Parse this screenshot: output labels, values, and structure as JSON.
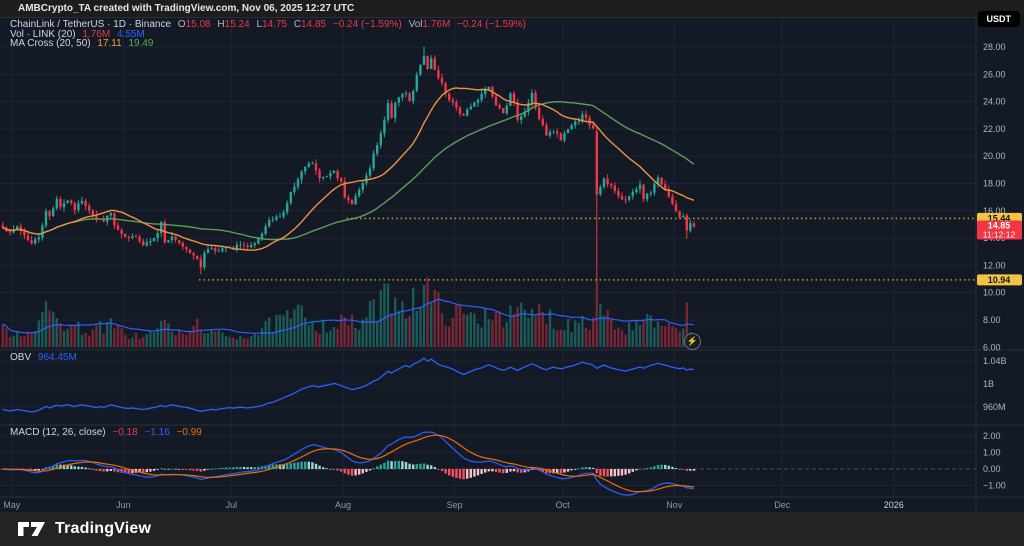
{
  "titlebar": {
    "text": "AMBCrypto_TA created with TradingView.com, Nov 06, 2025 12:27 UTC"
  },
  "legend": {
    "symbol": "ChainLink / TetherUS · 1D · Binance",
    "o_label": "O",
    "o_value": "15.08",
    "h_label": "H",
    "h_value": "15.24",
    "l_label": "L",
    "l_value": "14.75",
    "c_label": "C",
    "c_value": "14.85",
    "change": "−0.24 (−1.59%)",
    "vol_label": "Vol",
    "vol_value": "1.76M",
    "vol_change": "−0.24 (−1.59%)",
    "vol_row_label": "Vol · LINK (20)",
    "vol_row_v1": "1.76M",
    "vol_row_v2": "4.55M",
    "ma_row_label": "MA Cross (20, 50)",
    "ma_row_v1": "17.11",
    "ma_row_v2": "19.49",
    "obv_label": "OBV",
    "obv_value": "964.45M",
    "macd_label": "MACD (12, 26, close)",
    "macd_v1": "−0.18",
    "macd_v2": "−1.16",
    "macd_v3": "−0.99"
  },
  "price_axis": {
    "currency": "USDT",
    "ticks": [
      "28.00",
      "26.00",
      "24.00",
      "22.00",
      "20.00",
      "18.00",
      "16.00",
      "14.00",
      "12.00",
      "10.00",
      "8.00",
      "6.00"
    ],
    "resistance_badge": "15.44",
    "last_price_badge": "14.85",
    "countdown_badge": "11:12:12",
    "support_badge": "10.94"
  },
  "obv_axis": {
    "ticks": [
      "1.04B",
      "1B",
      "960M"
    ]
  },
  "macd_axis": {
    "ticks": [
      "2.00",
      "1.00",
      "0.00",
      "−1.00"
    ]
  },
  "time_axis": {
    "labels": [
      {
        "label": "May",
        "index": 3
      },
      {
        "label": "Jun",
        "index": 34
      },
      {
        "label": "Jul",
        "index": 64
      },
      {
        "label": "Aug",
        "index": 95
      },
      {
        "label": "Sep",
        "index": 126
      },
      {
        "label": "Oct",
        "index": 156
      },
      {
        "label": "Nov",
        "index": 187
      },
      {
        "label": "Dec",
        "index": 217
      },
      {
        "label": "2026",
        "index": 248,
        "bright": true
      }
    ]
  },
  "footer": {
    "brand": "TradingView"
  },
  "colors": {
    "bg": "#141a25",
    "grid": "#1d2433",
    "separator": "#2a2e39",
    "axis_text": "#b2b5be",
    "time_text": "#9598a1",
    "bright_text": "#d1d4dc",
    "up": "#26a69a",
    "down": "#f23645",
    "ma_fast": "#f0933e",
    "ma_slow": "#5b9f58",
    "blue": "#2962ff",
    "signal": "#ef6c00",
    "hist_up_grow": "#26a69a",
    "hist_up_fall": "#9ed8d2",
    "hist_dn_fall": "#f7525f",
    "hist_dn_grow": "#f6c4c8",
    "level_yellow": "#b0a224",
    "badge_yellow": "#f2c344",
    "badge_red": "#f23645"
  },
  "chart_data": {
    "type": "candlestick",
    "symbol": "LINKUSDT",
    "exchange": "Binance",
    "timeframe": "1D",
    "start_date": "2025-04-28",
    "bars": 193,
    "seed": 7,
    "price_view_range": [
      6,
      28
    ],
    "last_bar": {
      "open": 15.08,
      "high": 15.24,
      "low": 14.75,
      "close": 14.85,
      "volume_m": 1.76
    },
    "levels": [
      {
        "price": 15.44,
        "start_index": 96
      },
      {
        "price": 10.94,
        "start_index": 55
      }
    ],
    "close_anchors": [
      [
        0,
        14.9
      ],
      [
        2,
        14.3
      ],
      [
        4,
        14.85
      ],
      [
        6,
        14.2
      ],
      [
        8,
        13.6
      ],
      [
        10,
        14.1
      ],
      [
        12,
        15.9
      ],
      [
        13,
        15.6
      ],
      [
        15,
        16.9
      ],
      [
        16,
        16.3
      ],
      [
        18,
        16.8
      ],
      [
        20,
        16.1
      ],
      [
        22,
        16.8
      ],
      [
        24,
        16.1
      ],
      [
        26,
        15.4
      ],
      [
        28,
        15.3
      ],
      [
        30,
        15.8
      ],
      [
        31,
        14.9
      ],
      [
        33,
        14.2
      ],
      [
        35,
        13.9
      ],
      [
        37,
        14.2
      ],
      [
        39,
        13.5
      ],
      [
        41,
        13.9
      ],
      [
        43,
        14.3
      ],
      [
        44,
        15.2
      ],
      [
        45,
        13.7
      ],
      [
        47,
        14.0
      ],
      [
        49,
        13.6
      ],
      [
        51,
        13.2
      ],
      [
        53,
        12.8
      ],
      [
        55,
        11.9
      ],
      [
        56,
        13.0
      ],
      [
        58,
        13.3
      ],
      [
        60,
        13.0
      ],
      [
        62,
        13.3
      ],
      [
        64,
        13.2
      ],
      [
        66,
        13.6
      ],
      [
        68,
        13.3
      ],
      [
        70,
        13.5
      ],
      [
        72,
        14.3
      ],
      [
        74,
        15.2
      ],
      [
        76,
        15.5
      ],
      [
        78,
        15.9
      ],
      [
        80,
        17.3
      ],
      [
        82,
        18.2
      ],
      [
        84,
        19.2
      ],
      [
        86,
        19.5
      ],
      [
        88,
        18.3
      ],
      [
        90,
        18.6
      ],
      [
        92,
        19.1
      ],
      [
        94,
        18.0
      ],
      [
        95,
        16.9
      ],
      [
        97,
        16.6
      ],
      [
        99,
        17.5
      ],
      [
        101,
        18.4
      ],
      [
        103,
        20.0
      ],
      [
        105,
        21.5
      ],
      [
        107,
        23.7
      ],
      [
        108,
        23.0
      ],
      [
        110,
        24.3
      ],
      [
        112,
        24.8
      ],
      [
        113,
        24.1
      ],
      [
        115,
        25.8
      ],
      [
        117,
        27.2
      ],
      [
        118,
        26.3
      ],
      [
        119,
        26.9
      ],
      [
        121,
        25.6
      ],
      [
        123,
        24.6
      ],
      [
        125,
        23.9
      ],
      [
        127,
        22.9
      ],
      [
        129,
        23.4
      ],
      [
        131,
        23.9
      ],
      [
        133,
        24.7
      ],
      [
        135,
        25.1
      ],
      [
        137,
        24.0
      ],
      [
        139,
        23.4
      ],
      [
        141,
        24.4
      ],
      [
        143,
        22.9
      ],
      [
        145,
        23.3
      ],
      [
        147,
        24.5
      ],
      [
        149,
        22.8
      ],
      [
        151,
        21.4
      ],
      [
        153,
        21.8
      ],
      [
        155,
        21.2
      ],
      [
        157,
        22.1
      ],
      [
        159,
        22.4
      ],
      [
        161,
        23.2
      ],
      [
        163,
        22.1
      ],
      [
        164,
        21.9
      ],
      [
        165,
        17.2
      ],
      [
        166,
        17.8
      ],
      [
        167,
        18.2
      ],
      [
        169,
        17.9
      ],
      [
        171,
        17.0
      ],
      [
        173,
        16.7
      ],
      [
        175,
        17.4
      ],
      [
        177,
        17.9
      ],
      [
        178,
        16.9
      ],
      [
        180,
        17.3
      ],
      [
        182,
        18.3
      ],
      [
        184,
        17.6
      ],
      [
        186,
        16.4
      ],
      [
        188,
        15.5
      ],
      [
        189,
        15.7
      ],
      [
        190,
        14.55
      ],
      [
        191,
        15.1
      ],
      [
        192,
        14.85
      ]
    ],
    "volume_anchors": [
      [
        0,
        4
      ],
      [
        6,
        3
      ],
      [
        12,
        8
      ],
      [
        15,
        7
      ],
      [
        18,
        5
      ],
      [
        24,
        4
      ],
      [
        30,
        5
      ],
      [
        34,
        3
      ],
      [
        40,
        2.5
      ],
      [
        44,
        5
      ],
      [
        45,
        5.5
      ],
      [
        50,
        2.5
      ],
      [
        55,
        6
      ],
      [
        58,
        3
      ],
      [
        64,
        2.5
      ],
      [
        70,
        3
      ],
      [
        74,
        5
      ],
      [
        80,
        7
      ],
      [
        84,
        8
      ],
      [
        88,
        5
      ],
      [
        92,
        5
      ],
      [
        95,
        6
      ],
      [
        99,
        5
      ],
      [
        103,
        9
      ],
      [
        106,
        11
      ],
      [
        108,
        13
      ],
      [
        110,
        11
      ],
      [
        113,
        10
      ],
      [
        115,
        12
      ],
      [
        117,
        14
      ],
      [
        119,
        11
      ],
      [
        122,
        9
      ],
      [
        125,
        7
      ],
      [
        128,
        8
      ],
      [
        132,
        6
      ],
      [
        135,
        9
      ],
      [
        138,
        8
      ],
      [
        141,
        7
      ],
      [
        144,
        8
      ],
      [
        147,
        7
      ],
      [
        150,
        9
      ],
      [
        153,
        6
      ],
      [
        156,
        5
      ],
      [
        159,
        6
      ],
      [
        161,
        7
      ],
      [
        163,
        6
      ],
      [
        165,
        16
      ],
      [
        167,
        9
      ],
      [
        170,
        5
      ],
      [
        173,
        4
      ],
      [
        176,
        5
      ],
      [
        179,
        6
      ],
      [
        182,
        5
      ],
      [
        185,
        4
      ],
      [
        188,
        4
      ],
      [
        190,
        10.5
      ],
      [
        191,
        3.5
      ],
      [
        192,
        1.76
      ]
    ],
    "overrides": {
      "55": {
        "l": 11.35
      },
      "117": {
        "h": 28.05
      },
      "165": {
        "o": 21.8,
        "h": 22.2,
        "l": 10.94,
        "c": 17.2,
        "v": 16
      },
      "190": {
        "o": 15.65,
        "h": 15.8,
        "l": 13.95,
        "c": 14.55,
        "v": 10.5
      },
      "191": {
        "o": 14.55,
        "h": 15.35,
        "l": 14.4,
        "c": 15.1,
        "v": 3.5
      },
      "192": {
        "o": 15.08,
        "h": 15.24,
        "l": 14.75,
        "c": 14.85,
        "v": 1.76
      }
    },
    "indicators": {
      "ma_cross": {
        "fast": 20,
        "slow": 50,
        "fast_last": 17.11,
        "slow_last": 19.49
      },
      "volume_ma": {
        "length": 20,
        "last": "4.55M"
      },
      "obv_last": "964.45M",
      "macd": {
        "fast": 12,
        "slow": 26,
        "source": "close",
        "signal": 9,
        "hist_last": -0.18,
        "macd_last": -1.16,
        "signal_last": -0.99
      }
    }
  }
}
